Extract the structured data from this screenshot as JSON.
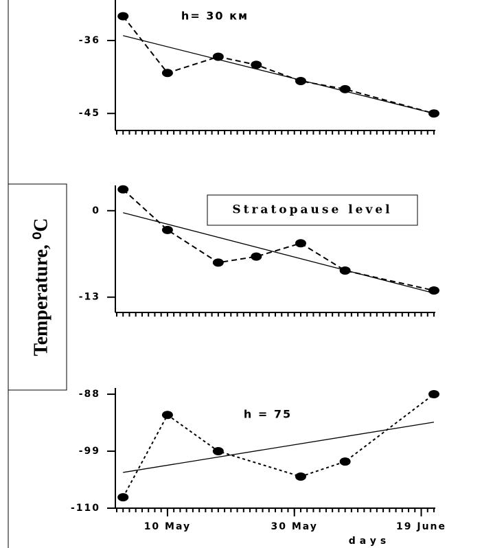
{
  "y_label": "Temperature, ⁰C",
  "x_label": "days",
  "chart_data": [
    {
      "type": "line",
      "annotation": "h= 30 км",
      "xlim": [
        2,
        52
      ],
      "ylim": [
        -47.1,
        -31.0
      ],
      "yticks": [
        -36,
        -45
      ],
      "series": [
        {
          "color": "#000000",
          "style": "dashed",
          "markers": true,
          "x": [
            3,
            10,
            18,
            24,
            31,
            38,
            52
          ],
          "values": [
            -33.0,
            -40.0,
            -38.0,
            -39.0,
            -41.0,
            -42.0,
            -45.0
          ]
        },
        {
          "color": "#000000",
          "style": "solid",
          "markers": false,
          "x": [
            3,
            52
          ],
          "values": [
            -35.4,
            -45.0
          ]
        }
      ]
    },
    {
      "type": "line",
      "annotation": "Stratopause level",
      "xlim": [
        2,
        52
      ],
      "ylim": [
        -15.3,
        3.8
      ],
      "yticks": [
        0,
        -13
      ],
      "series": [
        {
          "color": "#000000",
          "style": "dashed",
          "markers": true,
          "x": [
            3,
            10,
            18,
            24,
            31,
            38,
            52
          ],
          "values": [
            3.2,
            -2.9,
            -7.8,
            -6.9,
            -4.9,
            -9.0,
            -12.0
          ]
        },
        {
          "color": "#000000",
          "style": "solid",
          "markers": false,
          "x": [
            3,
            52
          ],
          "values": [
            -0.3,
            -12.4
          ]
        }
      ]
    },
    {
      "type": "line",
      "annotation": "h = 75",
      "xlim": [
        2,
        52
      ],
      "ylim": [
        -110,
        -86.8
      ],
      "yticks": [
        -88,
        -99,
        -110
      ],
      "xticks": [
        {
          "value": 10,
          "label": "10 May"
        },
        {
          "value": 30,
          "label": "30 May"
        },
        {
          "value": 50,
          "label": "19 June"
        }
      ],
      "series": [
        {
          "color": "#000000",
          "style": "dotted",
          "markers": true,
          "x": [
            3,
            10,
            18,
            31,
            38,
            52
          ],
          "values": [
            -107.9,
            -92.0,
            -99.0,
            -103.9,
            -101.0,
            -88.0
          ]
        },
        {
          "color": "#000000",
          "style": "solid",
          "markers": false,
          "x": [
            3,
            52
          ],
          "values": [
            -103.1,
            -93.4
          ]
        }
      ]
    }
  ]
}
